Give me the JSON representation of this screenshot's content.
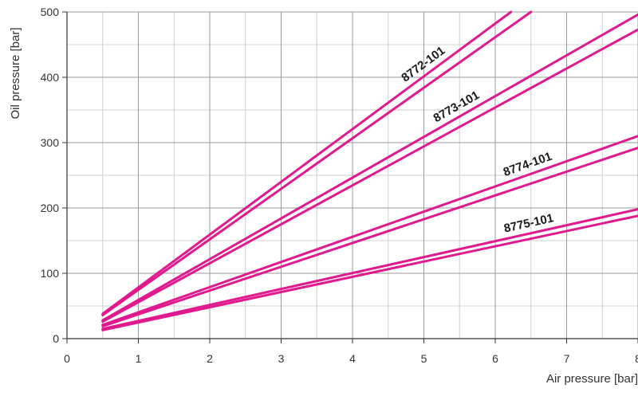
{
  "chart_data": {
    "type": "line",
    "xlabel": "Air pressure  [bar]",
    "ylabel": "Oil pressure  [bar]",
    "xlim": [
      0,
      8
    ],
    "ylim": [
      0,
      500
    ],
    "x_ticks": [
      "0",
      "1",
      "2",
      "3",
      "4",
      "5",
      "6",
      "7",
      "8"
    ],
    "y_ticks": [
      "0",
      "100",
      "200",
      "300",
      "400",
      "500"
    ],
    "grid": true,
    "line_color": "#e0198f",
    "series": [
      {
        "name": "8772-101",
        "lines": [
          {
            "x": [
              0.5,
              6.22
            ],
            "y": [
              38,
              500
            ]
          },
          {
            "x": [
              0.5,
              6.5
            ],
            "y": [
              36,
              500
            ]
          }
        ]
      },
      {
        "name": "8773-101",
        "lines": [
          {
            "x": [
              0.5,
              8
            ],
            "y": [
              28,
              496
            ]
          },
          {
            "x": [
              0.5,
              8
            ],
            "y": [
              26,
              473
            ]
          }
        ]
      },
      {
        "name": "8774-101",
        "lines": [
          {
            "x": [
              0.5,
              8
            ],
            "y": [
              21,
              310
            ]
          },
          {
            "x": [
              0.5,
              8
            ],
            "y": [
              19,
              292
            ]
          }
        ]
      },
      {
        "name": "8775-101",
        "lines": [
          {
            "x": [
              0.5,
              8
            ],
            "y": [
              15,
              198
            ]
          },
          {
            "x": [
              0.5,
              8
            ],
            "y": [
              13,
              188
            ]
          }
        ]
      }
    ]
  }
}
